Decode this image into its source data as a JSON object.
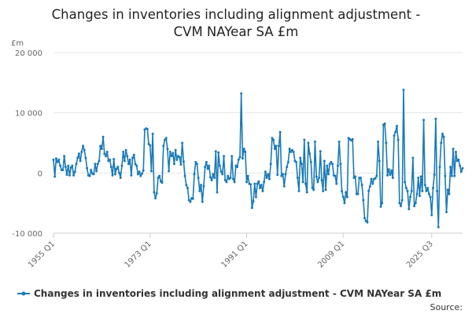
{
  "chart_data": {
    "type": "line",
    "title_line1": "Changes in inventories including alignment adjustment -",
    "title_line2": "CVM NAYear SA £m",
    "ylabel": "£m",
    "xlabel": "",
    "ylim": [
      -10000,
      20000
    ],
    "y_ticks": [
      {
        "value": 20000,
        "label": "20 000"
      },
      {
        "value": 10000,
        "label": "10 000"
      },
      {
        "value": 0,
        "label": "0"
      },
      {
        "value": -10000,
        "label": "-10 000"
      }
    ],
    "x_ticks": [
      "1955 Q1",
      "1973 Q1",
      "1991 Q1",
      "2009 Q1",
      "2025 Q3"
    ],
    "grid": true,
    "legend_position": "bottom",
    "source": "Source:",
    "colors": {
      "series": "#1a7ab8",
      "grid": "#e6e6e6",
      "axis": "#cccccc"
    },
    "series": [
      {
        "name": "Changes in inventories including alignment adjustment - CVM NAYear SA £m",
        "start": "1955 Q1",
        "frequency": "quarterly",
        "values": [
          2200,
          -600,
          2400,
          1800,
          2200,
          1200,
          500,
          500,
          2800,
          1000,
          -300,
          1200,
          -400,
          900,
          1200,
          -400,
          200,
          1500,
          2500,
          3200,
          2000,
          3500,
          4500,
          3800,
          2500,
          800,
          -400,
          -500,
          500,
          -100,
          -200,
          1500,
          300,
          1500,
          2000,
          4500,
          4000,
          6000,
          3200,
          2800,
          3500,
          2000,
          2200,
          1000,
          -400,
          2300,
          -200,
          700,
          1000,
          0,
          -800,
          1200,
          3500,
          2000,
          3800,
          2800,
          1500,
          2200,
          -400,
          2500,
          3000,
          1500,
          1200,
          -200,
          200,
          -500,
          -100,
          400,
          7200,
          7400,
          7300,
          4800,
          4600,
          300,
          6500,
          -3200,
          -4200,
          -3400,
          -800,
          -500,
          -1400,
          -1600,
          4500,
          5500,
          5800,
          4000,
          300,
          3500,
          2800,
          3300,
          1500,
          3800,
          2200,
          2800,
          2600,
          1400,
          5000,
          1900,
          -500,
          -2000,
          -2500,
          -4500,
          -4800,
          -4200,
          -4300,
          -200,
          1800,
          1500,
          -800,
          -3000,
          -2000,
          -4800,
          -2200,
          1000,
          1800,
          700,
          1200,
          -700,
          -1200,
          -200,
          -800,
          3600,
          -3200,
          3400,
          1200,
          200,
          -200,
          2800,
          -1200,
          -1500,
          -500,
          -1000,
          -800,
          2800,
          -1000,
          -1500,
          1200,
          1000,
          2200,
          2600,
          13200,
          2400,
          4000,
          3500,
          -1500,
          -500,
          -1800,
          -1900,
          -5800,
          -4700,
          -1800,
          -4000,
          -1800,
          -1400,
          -2500,
          -2000,
          -3000,
          -1500,
          200,
          -800,
          -200,
          -1000,
          1500,
          5800,
          5500,
          4000,
          4500,
          -300,
          4500,
          6800,
          -500,
          -200,
          -2200,
          -200,
          1000,
          1800,
          4000,
          3500,
          3800,
          3500,
          2000,
          1800,
          -800,
          -3000,
          2500,
          1500,
          -1500,
          5500,
          -1800,
          -3200,
          5000,
          3200,
          1800,
          -2500,
          -2800,
          5200,
          -600,
          -1500,
          -800,
          3600,
          -1200,
          -3000,
          2000,
          -2800,
          1200,
          -200,
          1500,
          1800,
          1500,
          -400,
          -500,
          -1800,
          1200,
          5200,
          1500,
          -3000,
          -4000,
          -5000,
          -3200,
          -4000,
          5800,
          5600,
          5400,
          5600,
          -800,
          -600,
          -3500,
          -3500,
          -800,
          -800,
          -2000,
          -4500,
          -7500,
          -8000,
          -8200,
          -3000,
          -2200,
          -1000,
          -1800,
          -1000,
          -900,
          -500,
          5200,
          2000,
          -5600,
          -5000,
          8000,
          8200,
          5000,
          -400,
          600,
          -300,
          400,
          -800,
          6200,
          6800,
          7800,
          5500,
          -5000,
          -5500,
          -4500,
          13800,
          -1500,
          -2500,
          -3000,
          -6000,
          -4000,
          -3000,
          2500,
          -5500,
          -5000,
          -3500,
          -800,
          -3800,
          -600,
          -3000,
          8800,
          -2000,
          -3000,
          -2500,
          -3500,
          -4000,
          -7000,
          -2500,
          -300,
          9000,
          -3000,
          -9000,
          1000,
          5000,
          6500,
          6000,
          -500,
          -6500,
          -2800,
          -3500,
          1000,
          -500,
          4000,
          -500,
          3500,
          2000,
          2200,
          1200,
          200,
          800
        ]
      }
    ]
  }
}
